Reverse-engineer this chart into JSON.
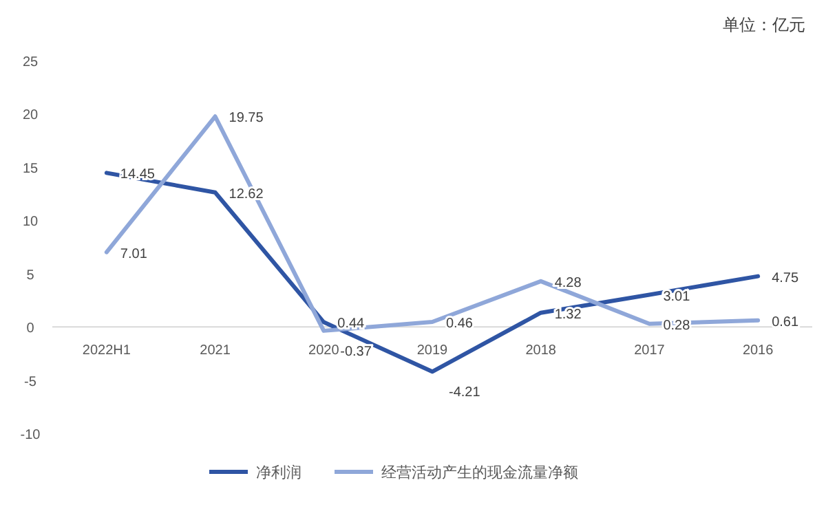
{
  "chart_data": {
    "type": "line",
    "annotations": [
      "单位：亿元"
    ],
    "categories": [
      "2022H1",
      "2021",
      "2020",
      "2019",
      "2018",
      "2017",
      "2016"
    ],
    "series": [
      {
        "name": "净利润",
        "color": "#2f55a4",
        "values": [
          14.45,
          12.62,
          0.44,
          -4.21,
          1.32,
          3.01,
          4.75
        ]
      },
      {
        "name": "经营活动产生的现金流量净额",
        "color": "#8fa7d9",
        "values": [
          7.01,
          19.75,
          -0.37,
          0.46,
          4.28,
          0.28,
          0.61
        ]
      }
    ],
    "ylim": [
      -10,
      25
    ],
    "yticks": [
      -10,
      -5,
      0,
      5,
      10,
      15,
      20,
      25
    ],
    "grid": false,
    "legend": "bottom",
    "data_labels": true
  }
}
